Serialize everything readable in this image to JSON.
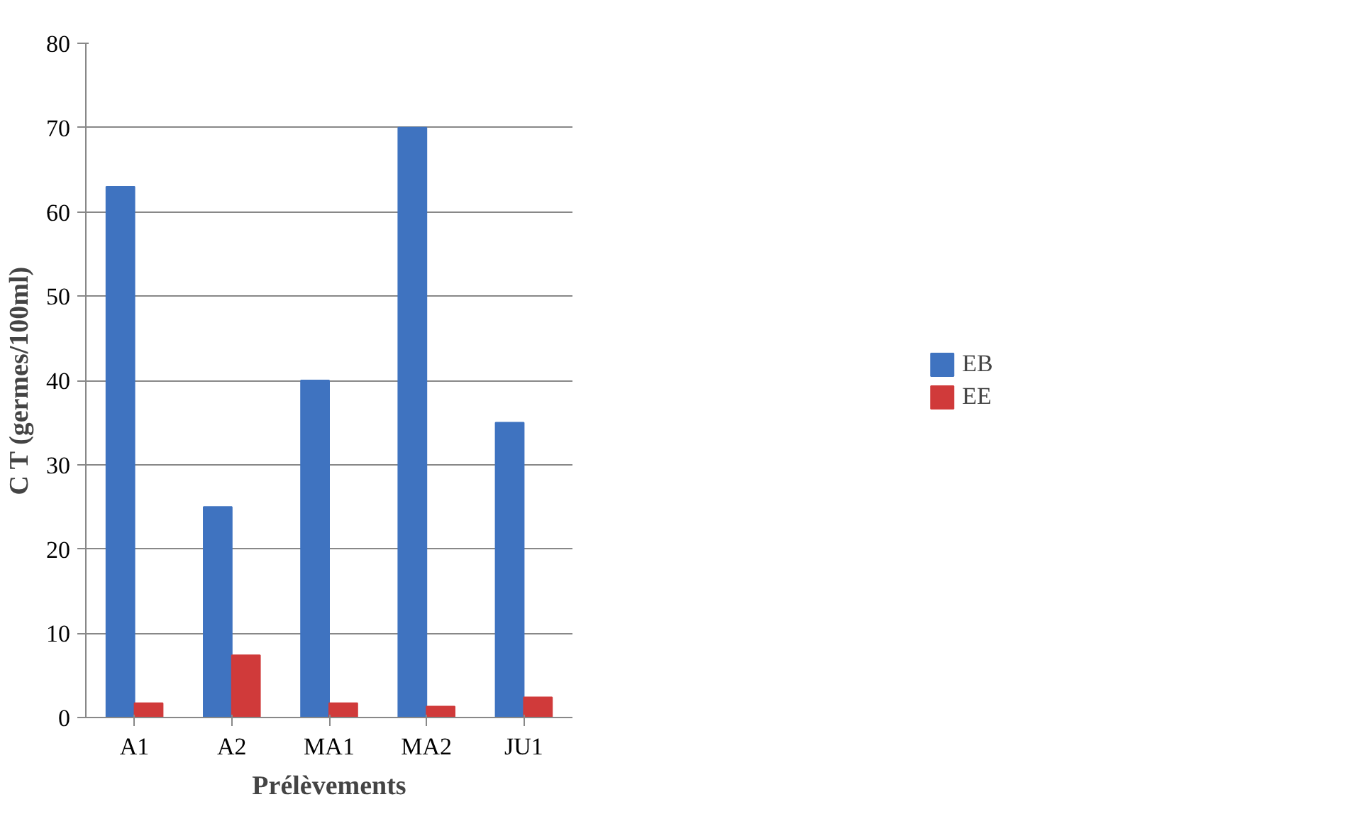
{
  "chart_data": {
    "type": "bar",
    "xlabel": "Prélèvements",
    "ylabel": "C T (germes/100ml)",
    "categories": [
      "A1",
      "A2",
      "MA1",
      "MA2",
      "JU1"
    ],
    "series": [
      {
        "name": "EB",
        "color": "#3f73c0",
        "values": [
          63,
          25,
          40,
          70,
          35
        ]
      },
      {
        "name": "EE",
        "color": "#d03a3a",
        "values": [
          1.7,
          7.4,
          1.7,
          1.3,
          2.4
        ]
      }
    ],
    "ylim": [
      0,
      80
    ],
    "yticks": [
      0,
      10,
      20,
      30,
      40,
      50,
      60,
      70,
      80
    ],
    "grid": "y",
    "legend": "right"
  }
}
